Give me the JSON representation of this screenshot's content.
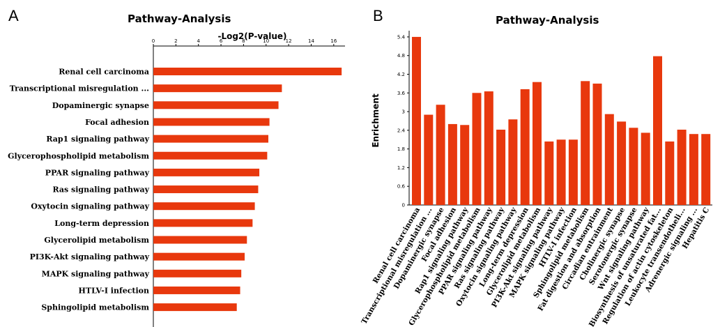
{
  "panels": {
    "a": "A",
    "b": "B"
  },
  "bar_color": "#e8380d",
  "chart_data": [
    {
      "type": "bar",
      "orientation": "horizontal",
      "title": "Pathway-Analysis",
      "xlabel": "-Log2(P-value)",
      "ylabel": "",
      "xlim": [
        0,
        17
      ],
      "ticks": [
        "0",
        "2",
        "4",
        "6",
        "8",
        "10",
        "12",
        "14",
        "16"
      ],
      "categories": [
        "Renal cell carcinoma",
        "Transcriptional misregulation ...",
        "Dopaminergic synapse",
        "Focal adhesion",
        "Rap1 signaling pathway",
        "Glycerophospholipid metabolism",
        "PPAR signaling pathway",
        "Ras signaling pathway",
        "Oxytocin signaling pathway",
        "Long-term depression",
        "Glycerolipid metabolism",
        "PI3K-Akt signaling pathway",
        "MAPK signaling pathway",
        "HTLV-I infection",
        "Sphingolipid metabolism"
      ],
      "values": [
        16.7,
        11.4,
        11.1,
        10.3,
        10.2,
        10.1,
        9.4,
        9.3,
        9.0,
        8.8,
        8.3,
        8.1,
        7.8,
        7.7,
        7.4
      ]
    },
    {
      "type": "bar",
      "title": "Pathway-Analysis",
      "xlabel": "",
      "ylabel": "Enrichment",
      "ylim": [
        0,
        5.6
      ],
      "ticks": [
        "0",
        "0.6",
        "1.2",
        "1.8",
        "2.4",
        "3",
        "3.6",
        "4.2",
        "4.8",
        "5.4"
      ],
      "categories": [
        "Renal cell carcinoma",
        "Transcriptional misregulation ...",
        "Dopaminergic synapse",
        "Focal adhesion",
        "Rap1 signaling pathway",
        "Glycerophospholipid metabolism",
        "PPAR signaling pathway",
        "Ras signaling pathway",
        "Oxytocin signaling pathway",
        "Long-term depression",
        "Glycerolipid metabolism",
        "PI3K-Akt signaling pathway",
        "MAPK signaling pathway",
        "HTLV-I infection",
        "Sphingolipid metabolism",
        "Fat digestion and absorption",
        "Circadian entrainment",
        "Cholinergic synapse",
        "Serotonergic synapse",
        "Wnt signaling pathway",
        "Biosynthesis of unsaturated fat...",
        "Regulation of actin cytoskeleton",
        "Leukocyte transendotheli...",
        "Adrenergic signaling ...",
        "Hepatitis C"
      ],
      "values": [
        5.4,
        2.9,
        3.22,
        2.6,
        2.57,
        3.6,
        3.65,
        2.42,
        2.75,
        3.72,
        3.95,
        2.04,
        2.1,
        2.1,
        3.98,
        3.9,
        2.92,
        2.68,
        2.48,
        2.32,
        4.78,
        2.04,
        2.42,
        2.28,
        2.28
      ]
    }
  ]
}
